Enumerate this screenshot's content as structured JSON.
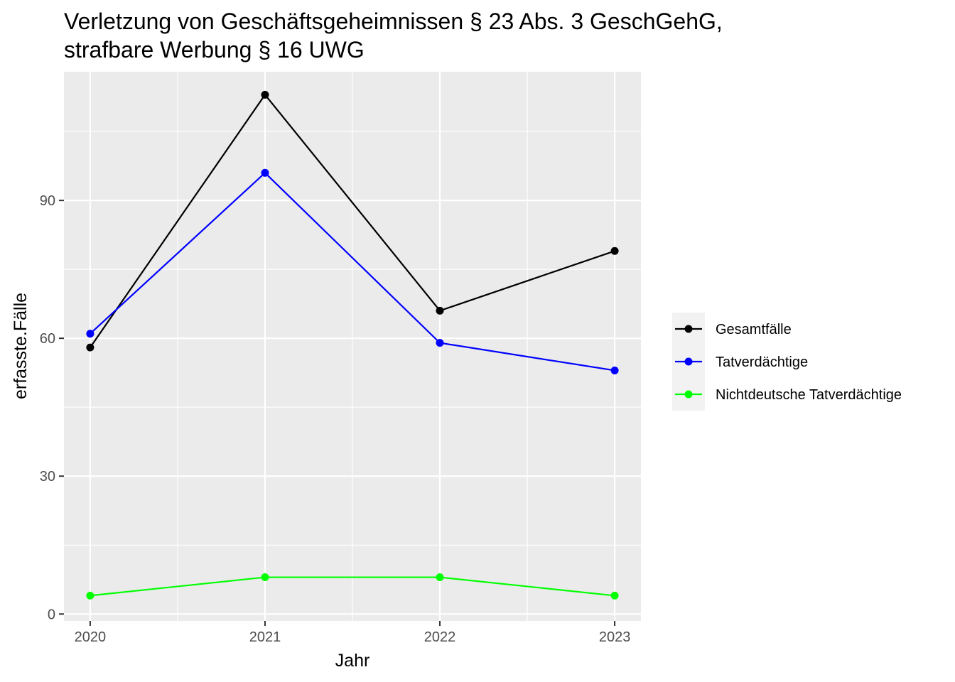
{
  "chart_data": {
    "type": "line",
    "title_lines": [
      "Verletzung von Geschäftsgeheimnissen § 23 Abs. 3 GeschGehG,",
      "strafbare Werbung § 16 UWG"
    ],
    "xlabel": "Jahr",
    "ylabel": "erfasste.Fälle",
    "x": [
      2020,
      2021,
      2022,
      2023
    ],
    "xlim": [
      2019.85,
      2023.15
    ],
    "ylim": [
      -1.5,
      118
    ],
    "y_ticks": [
      0,
      30,
      60,
      90
    ],
    "grid": true,
    "legend_position": "right",
    "series": [
      {
        "name": "Gesamtfälle",
        "color": "#000000",
        "values": [
          58,
          113,
          66,
          79
        ]
      },
      {
        "name": "Tatverdächtige",
        "color": "#0000ff",
        "values": [
          61,
          96,
          59,
          53
        ]
      },
      {
        "name": "Nichtdeutsche Tatverdächtige",
        "color": "#00ff00",
        "values": [
          4,
          8,
          8,
          4
        ]
      }
    ]
  }
}
